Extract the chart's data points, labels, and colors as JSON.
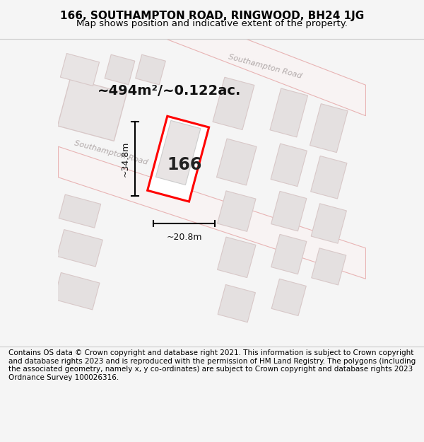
{
  "title_line1": "166, SOUTHAMPTON ROAD, RINGWOOD, BH24 1JG",
  "title_line2": "Map shows position and indicative extent of the property.",
  "footer_text": "Contains OS data © Crown copyright and database right 2021. This information is subject to Crown copyright and database rights 2023 and is reproduced with the permission of HM Land Registry. The polygons (including the associated geometry, namely x, y co-ordinates) are subject to Crown copyright and database rights 2023 Ordnance Survey 100026316.",
  "area_label": "~494m²/~0.122ac.",
  "number_label": "166",
  "dim_height": "~34.8m",
  "dim_width": "~20.8m",
  "road_label_lower": "Southampton Road",
  "road_label_upper": "Southampton Road",
  "bg_color": "#f5f5f5",
  "map_bg": "#eeecec",
  "plot_color": "#ff0000",
  "building_fill": "#e0e0e0",
  "building_stroke": "#cccccc",
  "road_fill": "#f8f3f3",
  "road_stroke": "#e8b4b4",
  "highlight_fill": "#ffffff",
  "title_fontsize": 11,
  "subtitle_fontsize": 9.5,
  "footer_fontsize": 7.5
}
